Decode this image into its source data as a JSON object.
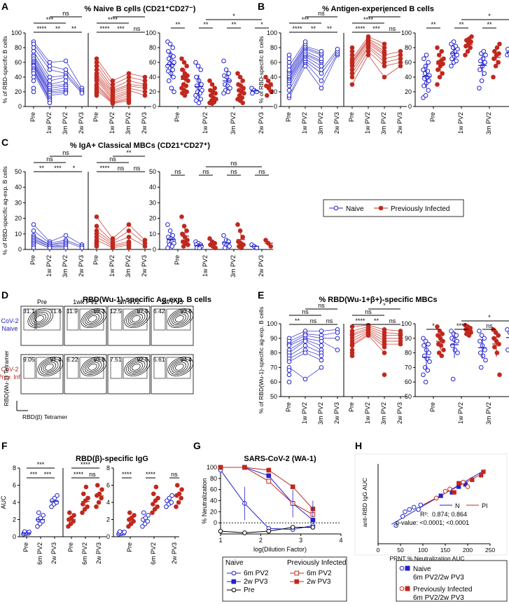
{
  "colors": {
    "naive": "#2222cc",
    "infected": "#c0281e"
  },
  "panels": {
    "A": {
      "letter": "A",
      "title": "% Naive B cells (CD21⁺CD27⁻)",
      "ylabel": "% of RBD-specific B cells"
    },
    "B": {
      "letter": "B",
      "title": "% Antigen-experienced B cells",
      "ylabel": "% of RBD-specific B cells"
    },
    "C": {
      "letter": "C",
      "title": "% IgA+ Classical MBCs (CD21⁺CD27⁺)",
      "ylabel": "% of RBD-specific ag-exp. B cells"
    },
    "D": {
      "letter": "D",
      "title": "RBD(Wu-1)-specific Ag-exp. B cells",
      "cols": [
        "Pre",
        "1wk PV2",
        "3m PV2",
        "2w PV3"
      ],
      "rowlabels": {
        "naive": [
          "CoV-2",
          "Naive"
        ],
        "infected": [
          "CoV-2",
          "Prev. Inf."
        ]
      },
      "naive_left": [
        "31.1",
        "11.9",
        "12.5",
        "6.42"
      ],
      "naive_right": [
        "71.6",
        "88.3",
        "87.5",
        "93.6"
      ],
      "inf_left": [
        "9.05",
        "6.22",
        "7.51",
        "5.61"
      ],
      "inf_right": [
        "91.4",
        "93.8",
        "92.5",
        "94.4"
      ],
      "yaxis": "RBD(Wu-1) Tetramer",
      "xaxis": "RBD(β) Tetramer"
    },
    "E": {
      "letter": "E",
      "title": "% RBD(Wu-1+β+)-specific MBCs",
      "ylabel": "% of RBD(Wu-1)-specific ag-exp. B cells"
    },
    "F": {
      "letter": "F",
      "title": "RBD(β)-specific IgG",
      "ylabel": "AUC"
    },
    "G": {
      "letter": "G",
      "title": "SARS-CoV-2 (WA-1)",
      "ylabel": "% Neutralization",
      "xlabel": "log(Dilution Factor)"
    },
    "H": {
      "letter": "H",
      "ylabel": "anti-RBD IgG AUC",
      "xlabel": "PRNT % Neutralization AUC",
      "legend": [
        "N",
        "PI"
      ],
      "r2_label": "R²:",
      "r2_values": "0.874; 0.864",
      "pvalue": "p-value: <0.0001; <0.0001"
    }
  },
  "legend_top": {
    "naive": "Naive",
    "infected": "Previously Infected"
  },
  "legend_g": {
    "naive_title": "Naive",
    "infected_title": "Previously Infected",
    "naive_items": [
      "6m PV2",
      "2w PV3",
      "Pre"
    ],
    "infected_items": [
      "6m PV2",
      "2w PV3"
    ]
  },
  "legend_h": {
    "naive": [
      "Naive",
      "6m PV2/2w PV3"
    ],
    "infected": [
      "Previously Infected",
      "6m PV2/2w PV3"
    ]
  },
  "ticks": {
    "t4": [
      "Pre",
      "1w PV2",
      "3m PV2",
      "2w PV3"
    ],
    "t3": [
      "Pre",
      "6m PV2",
      "2w PV3"
    ],
    "a3": [
      "1w PV2",
      "3m PV2",
      "2w PV3"
    ],
    "b2": [
      "6m PV2",
      "2w PV3"
    ]
  },
  "sig": {
    "A": {
      "n": [
        "***",
        "ns",
        "****",
        "**",
        "**"
      ],
      "i": [
        "****",
        "*",
        "****",
        "***",
        "ns"
      ],
      "p": [
        "**",
        "**",
        "**",
        "*"
      ],
      "t": [
        "*"
      ]
    },
    "B": {
      "n": [
        "***",
        "ns",
        "****",
        "**",
        "**"
      ],
      "i": [
        "****",
        "*",
        "****",
        "***",
        "ns"
      ],
      "p": [
        "**",
        "**",
        "**",
        "*"
      ],
      "t": [
        "*"
      ]
    },
    "C": {
      "n": [
        "ns",
        "ns",
        "**",
        "***",
        "*"
      ],
      "i": [
        "ns",
        "**",
        "****",
        "ns",
        "ns"
      ],
      "p": [
        "ns",
        "ns",
        "ns",
        "ns"
      ],
      "t": [
        "ns"
      ]
    },
    "E": {
      "n": [
        "ns",
        "ns",
        "**",
        "ns",
        "ns"
      ],
      "i": [
        "ns",
        "*",
        "****",
        "**",
        "ns"
      ],
      "p": [
        "*",
        "****",
        "ns",
        "ns"
      ],
      "t": [
        "*"
      ]
    },
    "F": {
      "n": [
        "***",
        "***",
        "***"
      ],
      "i": [
        "****",
        "****",
        "ns"
      ],
      "p": [
        "****",
        "****",
        "ns"
      ]
    }
  },
  "chart_data": [
    {
      "type": "scatter",
      "panel": "A",
      "title": "% Naive B cells (CD21+CD27-)",
      "ylim": [
        0,
        100
      ],
      "series": [
        {
          "name": "Naive Pre",
          "values": [
            88,
            85,
            80,
            75,
            70,
            68,
            65,
            62,
            60,
            58,
            56,
            55,
            52,
            50,
            48,
            45,
            40,
            35,
            25,
            20
          ]
        },
        {
          "name": "Naive 1w PV2",
          "values": [
            60,
            55,
            50,
            40,
            35,
            30,
            28,
            25,
            22,
            20,
            18,
            15,
            12,
            10,
            8,
            5
          ]
        },
        {
          "name": "Naive 3m PV2",
          "values": [
            62,
            50,
            45,
            42,
            40,
            35,
            30,
            28,
            25,
            22,
            20,
            18
          ]
        },
        {
          "name": "Naive 2w PV3",
          "values": [
            25,
            22,
            20,
            18
          ]
        },
        {
          "name": "Infected Pre",
          "values": [
            65,
            60,
            55,
            50,
            45,
            42,
            40,
            38,
            35,
            30,
            28,
            25,
            22,
            20,
            18,
            15
          ]
        },
        {
          "name": "Infected 1w PV2",
          "values": [
            35,
            30,
            25,
            22,
            20,
            18,
            15,
            12,
            10,
            8,
            6,
            5,
            4
          ]
        },
        {
          "name": "Infected 3m PV2",
          "values": [
            45,
            40,
            35,
            30,
            28,
            25,
            22,
            20,
            18,
            15,
            12,
            10,
            8,
            5
          ]
        },
        {
          "name": "Infected 2w PV3",
          "values": [
            40,
            35,
            30,
            28,
            25,
            20,
            15
          ]
        }
      ]
    },
    {
      "type": "scatter",
      "panel": "B",
      "title": "% Antigen-experienced B cells",
      "ylim": [
        0,
        100
      ],
      "series": [
        {
          "name": "Naive Pre",
          "values": [
            12,
            15,
            22,
            28,
            32,
            35,
            38,
            40,
            42,
            45,
            48,
            50,
            55,
            60,
            65,
            70
          ]
        },
        {
          "name": "Naive 1w PV2",
          "values": [
            55,
            60,
            62,
            65,
            68,
            70,
            72,
            75,
            78,
            80,
            82,
            85,
            88
          ]
        },
        {
          "name": "Naive 3m PV2",
          "values": [
            25,
            35,
            45,
            50,
            55,
            60,
            62,
            65,
            70,
            72,
            75
          ]
        },
        {
          "name": "Naive 2w PV3",
          "values": [
            70,
            72,
            75,
            78
          ]
        },
        {
          "name": "Infected Pre",
          "values": [
            30,
            40,
            45,
            50,
            55,
            58,
            60,
            62,
            65,
            70,
            75,
            80
          ]
        },
        {
          "name": "Infected 1w PV2",
          "values": [
            70,
            75,
            80,
            82,
            85,
            88,
            90,
            92,
            95
          ]
        },
        {
          "name": "Infected 3m PV2",
          "values": [
            40,
            55,
            60,
            65,
            70,
            72,
            75,
            80,
            85
          ]
        },
        {
          "name": "Infected 2w PV3",
          "values": [
            55,
            60,
            65,
            70,
            75
          ]
        }
      ]
    },
    {
      "type": "scatter",
      "panel": "C",
      "title": "% IgA+ Classical MBCs (CD21+CD27+)",
      "ylim": [
        0,
        50
      ],
      "series": [
        {
          "name": "Naive Pre",
          "values": [
            16,
            12,
            9,
            8,
            7,
            6,
            5,
            5,
            4,
            3,
            2,
            1
          ]
        },
        {
          "name": "Naive 1w PV2",
          "values": [
            5,
            4,
            3,
            3,
            2,
            2,
            1,
            1
          ]
        },
        {
          "name": "Naive 3m PV2",
          "values": [
            9,
            6,
            5,
            4,
            3,
            2,
            1
          ]
        },
        {
          "name": "Naive 2w PV3",
          "values": [
            3,
            2,
            1
          ]
        },
        {
          "name": "Infected Pre",
          "values": [
            21,
            15,
            12,
            10,
            8,
            6,
            5,
            4,
            3,
            2
          ]
        },
        {
          "name": "Infected 1w PV2",
          "values": [
            7,
            5,
            4,
            3,
            2,
            1
          ]
        },
        {
          "name": "Infected 3m PV2",
          "values": [
            16,
            12,
            8,
            5,
            4,
            3,
            2,
            1
          ]
        },
        {
          "name": "Infected 2w PV3",
          "values": [
            6,
            4,
            2
          ]
        }
      ]
    },
    {
      "type": "scatter",
      "panel": "E",
      "title": "% RBD(Wu-1+β+)-specific MBCs",
      "ylim": [
        50,
        100
      ],
      "series": [
        {
          "name": "Naive Pre",
          "values": [
            90,
            88,
            86,
            85,
            82,
            80,
            78,
            76,
            74,
            70,
            68,
            65,
            60
          ]
        },
        {
          "name": "Naive 1w PV2",
          "values": [
            95,
            93,
            92,
            90,
            89,
            88,
            85,
            82,
            80,
            62
          ]
        },
        {
          "name": "Naive 3m PV2",
          "values": [
            95,
            92,
            90,
            88,
            85,
            82,
            80,
            78,
            75,
            70
          ]
        },
        {
          "name": "Naive 2w PV3",
          "values": [
            96,
            94,
            90,
            82
          ]
        },
        {
          "name": "Infected Pre",
          "values": [
            98,
            95,
            93,
            92,
            90,
            88,
            86,
            85,
            82,
            80,
            78
          ]
        },
        {
          "name": "Infected 1w PV2",
          "values": [
            99,
            98,
            97,
            96,
            95,
            94,
            93,
            92
          ]
        },
        {
          "name": "Infected 3m PV2",
          "values": [
            96,
            94,
            92,
            90,
            88,
            86,
            84,
            80,
            65
          ]
        },
        {
          "name": "Infected 2w PV3",
          "values": [
            95,
            93,
            92,
            90,
            88,
            86
          ]
        }
      ]
    },
    {
      "type": "scatter",
      "panel": "F",
      "title": "RBD(β)-specific IgG",
      "ylabel": "AUC",
      "ylim": [
        0,
        8
      ],
      "series": [
        {
          "name": "Naive Pre",
          "values": [
            0.3,
            0.35,
            0.4,
            0.45,
            0.5,
            0.55,
            0.6
          ]
        },
        {
          "name": "Naive 6m PV2",
          "values": [
            1.2,
            1.5,
            1.8,
            2.0,
            2.2,
            2.5,
            2.8
          ]
        },
        {
          "name": "Naive 2w PV3",
          "values": [
            3.5,
            3.8,
            4.0,
            4.2,
            4.5,
            4.8
          ]
        },
        {
          "name": "Infected Pre",
          "values": [
            1.2,
            1.5,
            1.8,
            2.0,
            2.2,
            2.5,
            2.8
          ]
        },
        {
          "name": "Infected 6m PV2",
          "values": [
            2.8,
            3.2,
            3.5,
            3.8,
            4.2,
            4.5,
            5.0,
            5.8
          ]
        },
        {
          "name": "Infected 2w PV3",
          "values": [
            3.5,
            4.0,
            4.5,
            4.8,
            5.0,
            5.5,
            6.0
          ]
        }
      ]
    },
    {
      "type": "line",
      "panel": "G",
      "title": "SARS-CoV-2 (WA-1)",
      "xlabel": "log(Dilution Factor)",
      "ylabel": "% Neutralization",
      "xlim": [
        1,
        4
      ],
      "ylim": [
        -20,
        100
      ],
      "x": [
        1,
        1.6,
        2.2,
        2.8,
        3.3
      ],
      "series": [
        {
          "name": "Naive 6m PV2",
          "values": [
            95,
            35,
            -10,
            -12,
            -5
          ]
        },
        {
          "name": "Naive 2w PV3",
          "values": [
            100,
            100,
            85,
            35,
            5
          ]
        },
        {
          "name": "Naive Pre",
          "values": [
            -15,
            -18,
            -15,
            -8,
            -8
          ]
        },
        {
          "name": "Infected 6m PV2",
          "values": [
            100,
            100,
            75,
            35,
            15
          ]
        },
        {
          "name": "Infected 2w PV3",
          "values": [
            100,
            100,
            95,
            65,
            25
          ]
        }
      ]
    },
    {
      "type": "scatter",
      "panel": "H",
      "xlabel": "PRNT % Neutralization AUC",
      "ylabel": "anti-RBD IgG AUC",
      "xlim": [
        0,
        250
      ],
      "ylim": [
        0,
        7
      ],
      "series": [
        {
          "name": "Naive 6m PV2",
          "x": [
            40,
            55,
            60,
            70,
            80,
            90,
            95
          ],
          "y": [
            1.6,
            2.4,
            2.8,
            3.0,
            3.2,
            3.0,
            3.4
          ]
        },
        {
          "name": "Naive 2w PV3",
          "x": [
            140,
            165,
            180,
            195
          ],
          "y": [
            4.2,
            4.5,
            5.0,
            5.2
          ]
        },
        {
          "name": "Infected 6m PV2",
          "x": [
            130,
            150,
            160,
            190,
            200
          ],
          "y": [
            4.0,
            4.6,
            4.8,
            5.4,
            5.0
          ]
        },
        {
          "name": "Infected 2w PV3",
          "x": [
            170,
            180,
            210,
            230,
            235
          ],
          "y": [
            4.5,
            5.3,
            5.6,
            6.0,
            6.3
          ]
        }
      ]
    }
  ]
}
